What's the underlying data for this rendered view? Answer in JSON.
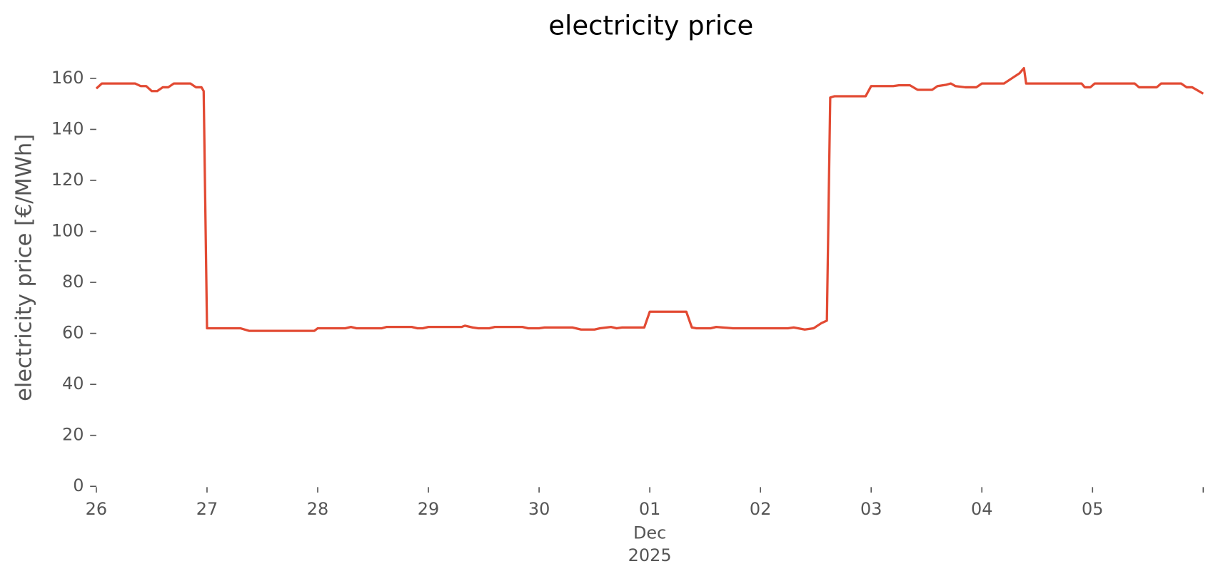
{
  "chart_data": {
    "type": "line",
    "title": "electricity price",
    "ylabel": "electricity price [€/MWh]",
    "x_sublabels": [
      "Dec",
      "2025"
    ],
    "color": "#E24A33",
    "x": [
      0,
      0.05,
      0.35,
      0.4,
      0.45,
      0.5,
      0.55,
      0.6,
      0.65,
      0.7,
      0.85,
      0.9,
      0.95,
      0.97,
      1.0,
      1.3,
      1.38,
      1.97,
      2.0,
      2.25,
      2.3,
      2.35,
      2.58,
      2.62,
      2.85,
      2.9,
      2.95,
      3.0,
      3.3,
      3.33,
      3.4,
      3.45,
      3.55,
      3.6,
      3.85,
      3.9,
      4.0,
      4.05,
      4.3,
      4.38,
      4.5,
      4.55,
      4.65,
      4.7,
      4.75,
      4.95,
      5.0,
      5.33,
      5.38,
      5.42,
      5.55,
      5.6,
      5.75,
      6.25,
      6.3,
      6.4,
      6.48,
      6.55,
      6.6,
      6.63,
      6.67,
      6.95,
      7.0,
      7.2,
      7.25,
      7.35,
      7.42,
      7.55,
      7.6,
      7.68,
      7.72,
      7.76,
      7.85,
      7.95,
      8.0,
      8.2,
      8.27,
      8.34,
      8.38,
      8.4,
      8.9,
      8.93,
      8.98,
      9.02,
      9.38,
      9.42,
      9.58,
      9.62,
      9.8,
      9.85,
      9.9,
      10
    ],
    "values": [
      156,
      158,
      158,
      157,
      157,
      155,
      155,
      156.5,
      156.5,
      158,
      158,
      156.5,
      156.5,
      155,
      62,
      62,
      61,
      61,
      62,
      62,
      62.5,
      62,
      62,
      62.5,
      62.5,
      62,
      62,
      62.5,
      62.5,
      63,
      62.3,
      62,
      62,
      62.5,
      62.5,
      62,
      62,
      62.3,
      62.3,
      61.5,
      61.5,
      62,
      62.5,
      62,
      62.3,
      62.3,
      68.5,
      68.5,
      62.3,
      62,
      62,
      62.5,
      62,
      62,
      62.3,
      61.5,
      62,
      64,
      65,
      152.5,
      153,
      153,
      157,
      157,
      157.3,
      157.3,
      155.5,
      155.5,
      157,
      157.5,
      158,
      157,
      156.5,
      156.5,
      158,
      158,
      160,
      162,
      164,
      158,
      158,
      156.5,
      156.5,
      158,
      158,
      156.5,
      156.5,
      158,
      158,
      156.5,
      156.5,
      154
    ],
    "xlim": [
      0,
      10
    ],
    "xticks": [
      {
        "value": 0,
        "label": "26"
      },
      {
        "value": 1,
        "label": "27"
      },
      {
        "value": 2,
        "label": "28"
      },
      {
        "value": 3,
        "label": "29"
      },
      {
        "value": 4,
        "label": "30"
      },
      {
        "value": 5,
        "label": "01"
      },
      {
        "value": 6,
        "label": "02"
      },
      {
        "value": 7,
        "label": "03"
      },
      {
        "value": 8,
        "label": "04"
      },
      {
        "value": 9,
        "label": "05"
      },
      {
        "value": 10,
        "label": null
      }
    ],
    "ylim": [
      0,
      168
    ],
    "yticks": [
      0,
      20,
      40,
      60,
      80,
      100,
      120,
      140,
      160
    ],
    "grid": false
  }
}
